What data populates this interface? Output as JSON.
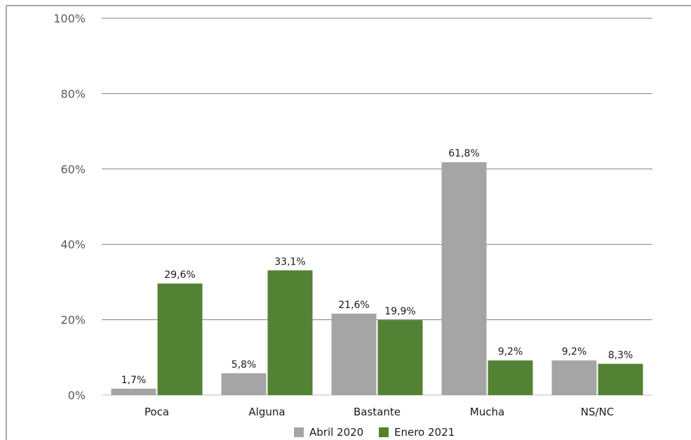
{
  "chart_data": {
    "type": "bar",
    "categories": [
      "Poca",
      "Alguna",
      "Bastante",
      "Mucha",
      "NS/NC"
    ],
    "series": [
      {
        "name": "Abril 2020",
        "values": [
          1.7,
          5.8,
          21.6,
          61.8,
          9.2
        ],
        "labels": [
          "1,7%",
          "5,8%",
          "21,6%",
          "61,8%",
          "9,2%"
        ],
        "color": "#a5a5a5"
      },
      {
        "name": "Enero 2021",
        "values": [
          29.6,
          33.1,
          19.9,
          9.2,
          8.3
        ],
        "labels": [
          "29,6%",
          "33,1%",
          "19,9%",
          "9,2%",
          "8,3%"
        ],
        "color": "#548235"
      }
    ],
    "ylim": [
      0,
      100
    ],
    "yticks": [
      0,
      20,
      40,
      60,
      80,
      100
    ],
    "ytick_labels": [
      "0%",
      "20%",
      "40%",
      "60%",
      "80%",
      "100%"
    ],
    "grid": true,
    "legend": "bottom"
  }
}
